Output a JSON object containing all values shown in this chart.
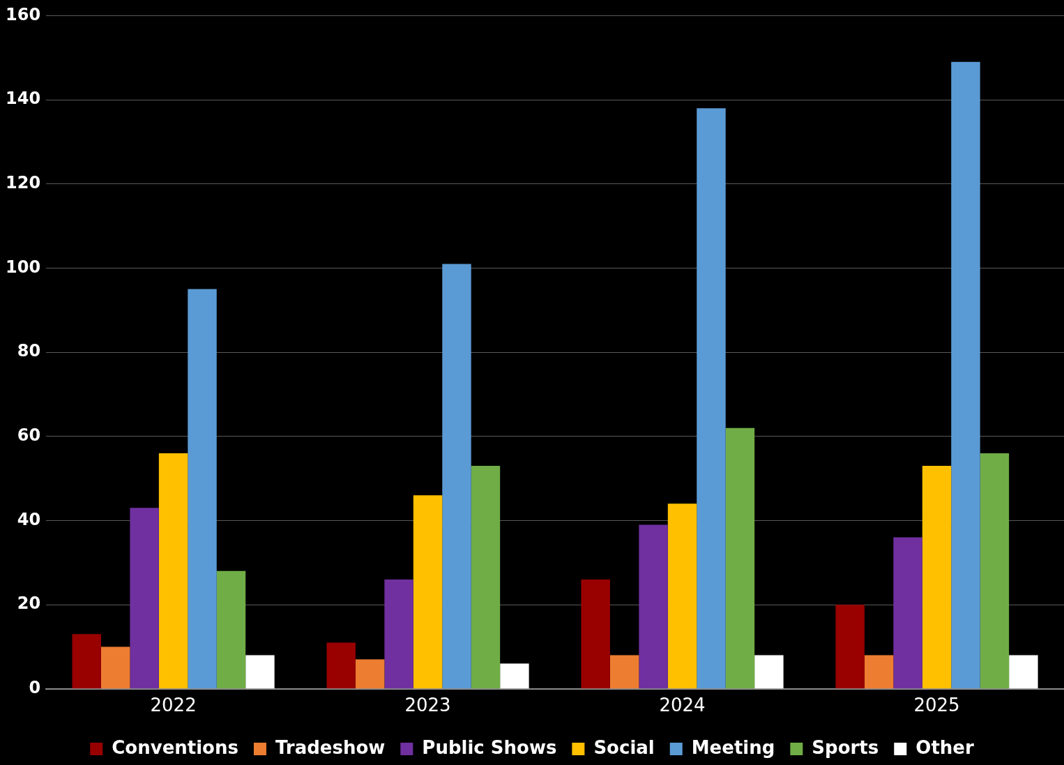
{
  "chart_data": {
    "type": "bar",
    "categories": [
      "2022",
      "2023",
      "2024",
      "2025"
    ],
    "series": [
      {
        "name": "Conventions",
        "color": "#990000",
        "values": [
          13,
          11,
          26,
          20
        ]
      },
      {
        "name": "Tradeshow",
        "color": "#ed7d31",
        "values": [
          10,
          7,
          8,
          8
        ]
      },
      {
        "name": "Public Shows",
        "color": "#7030a0",
        "values": [
          43,
          26,
          39,
          36
        ]
      },
      {
        "name": "Social",
        "color": "#ffc000",
        "values": [
          56,
          46,
          44,
          53
        ]
      },
      {
        "name": "Meeting",
        "color": "#5b9bd5",
        "values": [
          95,
          101,
          138,
          149
        ]
      },
      {
        "name": "Sports",
        "color": "#70ad47",
        "values": [
          28,
          53,
          62,
          56
        ]
      },
      {
        "name": "Other",
        "color": "#ffffff",
        "values": [
          8,
          6,
          8,
          8
        ]
      }
    ],
    "ylim": [
      0,
      160
    ],
    "yticks": [
      0,
      20,
      40,
      60,
      80,
      100,
      120,
      140,
      160
    ],
    "grid": "y",
    "legend": "bottom"
  }
}
